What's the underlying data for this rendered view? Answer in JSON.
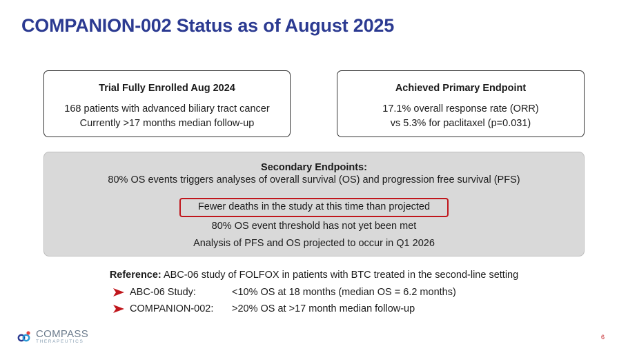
{
  "title": "COMPANION-002 Status as of August 2025",
  "enrolled_box": {
    "heading": "Trial Fully Enrolled Aug 2024",
    "line1": "168 patients with advanced biliary tract cancer",
    "line2": "Currently >17 months median follow-up"
  },
  "primary_box": {
    "heading": "Achieved Primary Endpoint",
    "line1": "17.1% overall response rate (ORR)",
    "line2": "vs 5.3% for paclitaxel (p=0.031)"
  },
  "secondary": {
    "heading": "Secondary Endpoints:",
    "subheading": "80% OS events triggers analyses of overall survival (OS) and progression free survival (PFS)",
    "highlight": "Fewer deaths in the study at this time than projected",
    "line2": "80% OS event threshold has not yet been met",
    "line3": "Analysis of PFS and OS projected to occur in Q1 2026"
  },
  "reference": {
    "label": "Reference:",
    "text": " ABC-06 study of FOLFOX in patients with BTC treated in the second-line setting",
    "bullets": [
      {
        "label": "ABC-06 Study:",
        "value": "<10% OS at 18 months (median OS = 6.2 months)"
      },
      {
        "label": "COMPANION-002:",
        "value": ">20% OS at >17 month median follow-up"
      }
    ]
  },
  "logo": {
    "name": "COMPASS",
    "sub": "THERAPEUTICS"
  },
  "page_number": "6",
  "colors": {
    "title": "#2b3a91",
    "accent_red": "#c0161c",
    "panel_gray": "#d9d9d9"
  }
}
